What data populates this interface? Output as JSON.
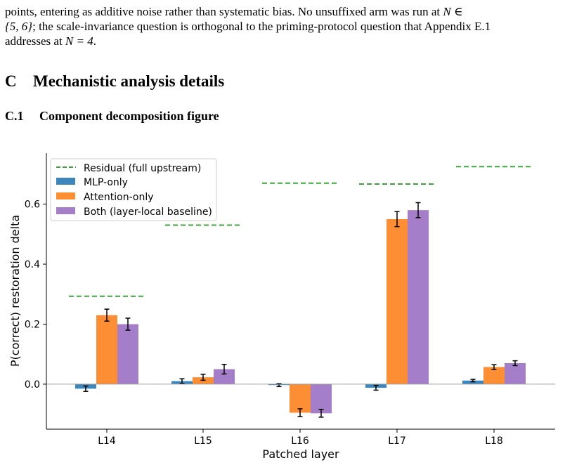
{
  "paragraph": {
    "line1_text": "points, entering as additive noise rather than systematic bias. No unsuffixed arm was run at ",
    "line1_math": "N ∈",
    "line2_math": "{5, 6}",
    "line2_text": "; the scale-invariance question is orthogonal to the priming-protocol question that Appendix E.1",
    "line3_text": "addresses at ",
    "line3_math": "N = 4",
    "line3_end": "."
  },
  "section": {
    "number": "C",
    "title": "Mechanistic analysis details"
  },
  "subsection": {
    "number": "C.1",
    "title": "Component decomposition figure"
  },
  "chart_data": {
    "type": "bar",
    "xlabel": "Patched layer",
    "ylabel": "P(correct) restoration delta",
    "categories": [
      "L14",
      "L15",
      "L16",
      "L17",
      "L18"
    ],
    "ylim": [
      -0.15,
      0.77
    ],
    "yticks": [
      "0.0",
      "0.2",
      "0.4",
      "0.6"
    ],
    "ytick_values": [
      0.0,
      0.2,
      0.4,
      0.6
    ],
    "legend_position": "top-left",
    "grid": false,
    "series": [
      {
        "name": "MLP-only",
        "color": "#3a86bd",
        "values": [
          -0.015,
          0.01,
          -0.003,
          -0.012,
          0.012
        ],
        "errors": [
          0.009,
          0.008,
          0.005,
          0.008,
          0.004
        ]
      },
      {
        "name": "Attention-only",
        "color": "#fd8e33",
        "values": [
          0.23,
          0.023,
          -0.095,
          0.55,
          0.057
        ],
        "errors": [
          0.02,
          0.01,
          0.013,
          0.025,
          0.008
        ]
      },
      {
        "name": "Both (layer-local baseline)",
        "color": "#a47ec8",
        "values": [
          0.2,
          0.05,
          -0.097,
          0.58,
          0.07
        ],
        "errors": [
          0.02,
          0.016,
          0.013,
          0.025,
          0.008
        ]
      }
    ],
    "residual": {
      "name": "Residual (full upstream)",
      "color": "#3aa63a",
      "style": "dashed",
      "values": [
        0.293,
        0.53,
        0.67,
        0.667,
        0.725
      ]
    }
  }
}
